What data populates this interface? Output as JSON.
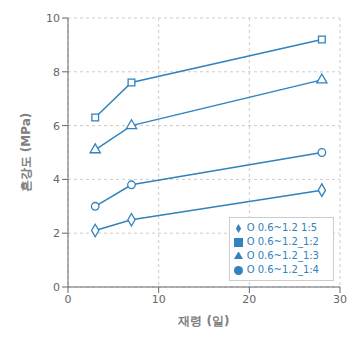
{
  "chart_data": {
    "type": "line",
    "xlabel": "재령 (일)",
    "ylabel": "흔강도 (MPa)",
    "x": [
      3,
      7,
      28
    ],
    "series": [
      {
        "name": "O 0.6~1.2_1:2",
        "values": [
          6.3,
          7.6,
          9.2
        ],
        "marker": "square"
      },
      {
        "name": "O 0.6~1.2_1:3",
        "values": [
          5.1,
          6.0,
          7.7
        ],
        "marker": "triangle"
      },
      {
        "name": "O 0.6~1.2_1:4",
        "values": [
          3.0,
          3.8,
          5.0
        ],
        "marker": "circle"
      },
      {
        "name": "O 0.6~1.2 1:5",
        "values": [
          2.1,
          2.5,
          3.6
        ],
        "marker": "diamond"
      }
    ],
    "xlim": [
      0,
      30
    ],
    "ylim": [
      0,
      10
    ],
    "xticks": [
      0,
      10,
      20,
      30
    ],
    "yticks": [
      0,
      2,
      4,
      6,
      8,
      10
    ],
    "grid": true,
    "legend": "lower right"
  }
}
